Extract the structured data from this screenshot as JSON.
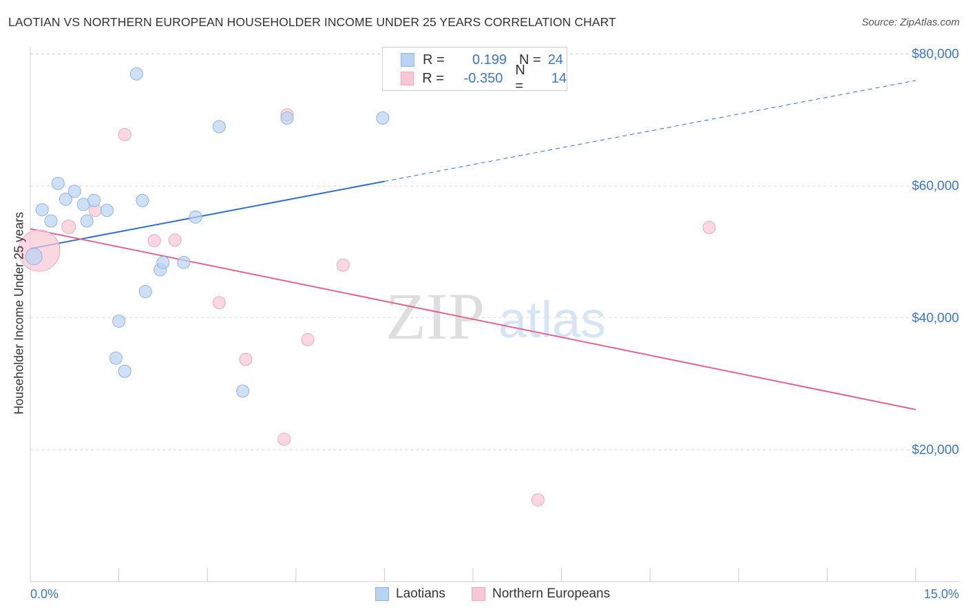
{
  "title": "LAOTIAN VS NORTHERN EUROPEAN HOUSEHOLDER INCOME UNDER 25 YEARS CORRELATION CHART",
  "source": "Source: ZipAtlas.com",
  "watermark": {
    "zip": "ZIP",
    "atlas": "atlas"
  },
  "legend": {
    "r_label": "R =",
    "n_label": "N =",
    "series1": {
      "r": "0.199",
      "n": "24"
    },
    "series2": {
      "r": "-0.350",
      "n": "14"
    }
  },
  "colors": {
    "blue_fill": "#b9d3f3",
    "blue_stroke": "#8fb3e5",
    "blue_line": "#2f6fd0",
    "pink_fill": "#f8c7d5",
    "pink_stroke": "#eda8bd",
    "pink_line": "#e0648f",
    "axis_label": "#3a76d0"
  },
  "chart_data": {
    "type": "scatter",
    "title": "LAOTIAN VS NORTHERN EUROPEAN HOUSEHOLDER INCOME UNDER 25 YEARS CORRELATION CHART",
    "xlabel": "",
    "ylabel": "Householder Income Under 25 years",
    "xlim": [
      0,
      15
    ],
    "ylim": [
      0,
      82000
    ],
    "x_tick_labels": [
      "0.0%",
      "15.0%"
    ],
    "y_ticks": [
      {
        "value": 20000,
        "label": "$20,000"
      },
      {
        "value": 40000,
        "label": "$40,000"
      },
      {
        "value": 60000,
        "label": "$60,000"
      },
      {
        "value": 80000,
        "label": "$80,000"
      }
    ],
    "series": [
      {
        "name": "Laotians",
        "color": "#b9d3f3",
        "points": [
          [
            0.06,
            49300
          ],
          [
            0.2,
            56400
          ],
          [
            0.35,
            54700
          ],
          [
            0.47,
            60400
          ],
          [
            0.6,
            58000
          ],
          [
            0.75,
            59200
          ],
          [
            0.9,
            57200
          ],
          [
            0.96,
            54700
          ],
          [
            1.08,
            57800
          ],
          [
            1.3,
            56300
          ],
          [
            1.45,
            33900
          ],
          [
            1.5,
            39500
          ],
          [
            1.6,
            31900
          ],
          [
            1.8,
            77000
          ],
          [
            1.9,
            57800
          ],
          [
            1.95,
            44000
          ],
          [
            2.2,
            47300
          ],
          [
            2.25,
            48400
          ],
          [
            2.6,
            48400
          ],
          [
            2.8,
            55300
          ],
          [
            3.2,
            69000
          ],
          [
            3.6,
            28900
          ],
          [
            4.35,
            70300
          ],
          [
            5.97,
            70300
          ]
        ],
        "trend": {
          "x0": 0.0,
          "y0": 50500,
          "x1": 6.0,
          "y1": 60700,
          "x_dash_end": 15.0,
          "y_dash_end": 76000
        }
      },
      {
        "name": "Northern Europeans",
        "color": "#f8c7d5",
        "points": [
          [
            0.15,
            50200
          ],
          [
            0.65,
            53800
          ],
          [
            1.1,
            56300
          ],
          [
            1.6,
            67800
          ],
          [
            2.1,
            51700
          ],
          [
            2.45,
            51800
          ],
          [
            3.2,
            42300
          ],
          [
            3.65,
            33700
          ],
          [
            4.3,
            21600
          ],
          [
            4.35,
            70800
          ],
          [
            4.7,
            36700
          ],
          [
            5.3,
            48000
          ],
          [
            8.6,
            12400
          ],
          [
            11.5,
            53700
          ]
        ],
        "sizes": [
          30,
          10,
          9,
          9,
          9,
          9,
          9,
          9,
          9,
          9,
          9,
          9,
          9,
          9
        ],
        "trend": {
          "x0": 0.0,
          "y0": 53500,
          "x1": 15.0,
          "y1": 26100
        }
      }
    ]
  }
}
